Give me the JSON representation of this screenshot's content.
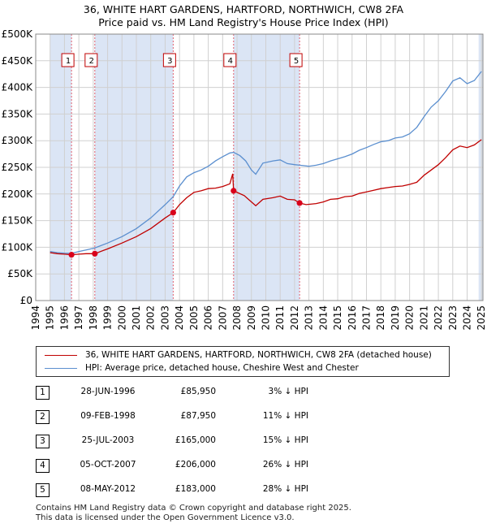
{
  "title_line1": "36, WHITE HART GARDENS, HARTFORD, NORTHWICH, CW8 2FA",
  "title_line2": "Price paid vs. HM Land Registry's House Price Index (HPI)",
  "colors": {
    "property": "#c00000",
    "hpi": "#5b8fcf",
    "band": "#dbe5f5",
    "marker": "#d9001b"
  },
  "chart_data": {
    "type": "line",
    "title": "36, WHITE HART GARDENS, HARTFORD, NORTHWICH, CW8 2FA",
    "subtitle": "Price paid vs. HM Land Registry's House Price Index (HPI)",
    "xlabel": "",
    "ylabel": "",
    "xlim": [
      1994,
      2025.1
    ],
    "ylim": [
      0,
      500000
    ],
    "grid": true,
    "x_ticks": [
      "1994",
      "1995",
      "1996",
      "1997",
      "1998",
      "1999",
      "2000",
      "2001",
      "2002",
      "2003",
      "2004",
      "2005",
      "2006",
      "2007",
      "2008",
      "2009",
      "2010",
      "2011",
      "2012",
      "2013",
      "2014",
      "2015",
      "2016",
      "2017",
      "2018",
      "2019",
      "2020",
      "2021",
      "2022",
      "2023",
      "2024",
      "2025"
    ],
    "y_ticks": [
      {
        "value": 0,
        "label": "£0"
      },
      {
        "value": 50000,
        "label": "£50K"
      },
      {
        "value": 100000,
        "label": "£100K"
      },
      {
        "value": 150000,
        "label": "£150K"
      },
      {
        "value": 200000,
        "label": "£200K"
      },
      {
        "value": 250000,
        "label": "£250K"
      },
      {
        "value": 300000,
        "label": "£300K"
      },
      {
        "value": 350000,
        "label": "£350K"
      },
      {
        "value": 400000,
        "label": "£400K"
      },
      {
        "value": 450000,
        "label": "£450K"
      },
      {
        "value": 500000,
        "label": "£500K"
      }
    ],
    "shaded_bands": [
      [
        1995.0,
        1996.49
      ],
      [
        1998.11,
        2003.56
      ],
      [
        2007.76,
        2012.35
      ],
      [
        2024.8,
        2025.1
      ]
    ],
    "series": [
      {
        "name": "36, WHITE HART GARDENS, HARTFORD, NORTHWICH, CW8 2FA (detached house)",
        "x": [
          1995.0,
          1995.5,
          1996.0,
          1996.49,
          1997.0,
          1997.5,
          1998.11,
          1999.0,
          2000.0,
          2001.0,
          2002.0,
          2003.0,
          2003.56,
          2004.0,
          2004.5,
          2005.0,
          2005.5,
          2006.0,
          2006.5,
          2007.0,
          2007.5,
          2007.7,
          2007.76,
          2008.5,
          2009.0,
          2009.3,
          2009.8,
          2010.5,
          2011.0,
          2011.5,
          2012.0,
          2012.35,
          2012.8,
          2013.5,
          2014.0,
          2014.5,
          2015.0,
          2015.5,
          2016.0,
          2016.5,
          2017.0,
          2017.5,
          2018.0,
          2018.5,
          2019.0,
          2019.5,
          2020.0,
          2020.5,
          2021.0,
          2021.5,
          2022.0,
          2022.5,
          2023.0,
          2023.5,
          2024.0,
          2024.5,
          2025.0
        ],
        "y": [
          90000,
          88000,
          87000,
          85950,
          87000,
          88000,
          87950,
          97000,
          108000,
          120000,
          135000,
          155000,
          165000,
          180000,
          193000,
          203000,
          206000,
          210000,
          211000,
          214000,
          219000,
          238000,
          206000,
          197000,
          185000,
          178000,
          190000,
          193000,
          196000,
          190000,
          189000,
          183000,
          180000,
          182000,
          185000,
          190000,
          191000,
          195000,
          196000,
          201000,
          204000,
          207000,
          210000,
          212000,
          214000,
          215000,
          218000,
          222000,
          235000,
          245000,
          255000,
          268000,
          283000,
          290000,
          287000,
          292000,
          302000
        ]
      },
      {
        "name": "HPI: Average price, detached house, Cheshire West and Chester",
        "x": [
          1995.0,
          1995.5,
          1996.0,
          1996.49,
          1997.0,
          1997.5,
          1998.11,
          1999.0,
          2000.0,
          2001.0,
          2002.0,
          2003.0,
          2003.56,
          2004.0,
          2004.5,
          2005.0,
          2005.5,
          2006.0,
          2006.5,
          2007.0,
          2007.5,
          2007.76,
          2008.2,
          2008.6,
          2009.0,
          2009.3,
          2009.8,
          2010.5,
          2011.0,
          2011.5,
          2012.0,
          2012.35,
          2013.0,
          2013.5,
          2014.0,
          2014.5,
          2015.0,
          2015.5,
          2016.0,
          2016.5,
          2017.0,
          2017.5,
          2018.0,
          2018.5,
          2019.0,
          2019.5,
          2020.0,
          2020.5,
          2021.0,
          2021.5,
          2022.0,
          2022.5,
          2023.0,
          2023.5,
          2024.0,
          2024.5,
          2025.0
        ],
        "y": [
          92000,
          90000,
          89000,
          88600,
          92000,
          95000,
          98800,
          108000,
          120000,
          135000,
          155000,
          180000,
          195000,
          215000,
          232000,
          240000,
          245000,
          252000,
          262000,
          270000,
          277000,
          278000,
          272000,
          262000,
          245000,
          237000,
          258000,
          262000,
          264000,
          257000,
          255000,
          254000,
          252000,
          254000,
          257000,
          262000,
          266000,
          270000,
          275000,
          282000,
          287000,
          293000,
          298000,
          300000,
          305000,
          307000,
          313000,
          325000,
          345000,
          363000,
          375000,
          392000,
          412000,
          418000,
          407000,
          413000,
          430000
        ]
      }
    ],
    "sales": [
      {
        "label": "1",
        "x": 1996.49,
        "price": 85950
      },
      {
        "label": "2",
        "x": 1998.11,
        "price": 87950
      },
      {
        "label": "3",
        "x": 2003.56,
        "price": 165000
      },
      {
        "label": "4",
        "x": 2007.76,
        "price": 206000
      },
      {
        "label": "5",
        "x": 2012.35,
        "price": 183000
      }
    ]
  },
  "legend": {
    "property_label": "36, WHITE HART GARDENS, HARTFORD, NORTHWICH, CW8 2FA (detached house)",
    "hpi_label": "HPI: Average price, detached house, Cheshire West and Chester"
  },
  "transactions": [
    {
      "num": "1",
      "date": "28-JUN-1996",
      "price": "£85,950",
      "hpi": "3% ↓ HPI"
    },
    {
      "num": "2",
      "date": "09-FEB-1998",
      "price": "£87,950",
      "hpi": "11% ↓ HPI"
    },
    {
      "num": "3",
      "date": "25-JUL-2003",
      "price": "£165,000",
      "hpi": "15% ↓ HPI"
    },
    {
      "num": "4",
      "date": "05-OCT-2007",
      "price": "£206,000",
      "hpi": "26% ↓ HPI"
    },
    {
      "num": "5",
      "date": "08-MAY-2012",
      "price": "£183,000",
      "hpi": "28% ↓ HPI"
    }
  ],
  "footer_line1": "Contains HM Land Registry data © Crown copyright and database right 2025.",
  "footer_line2": "This data is licensed under the Open Government Licence v3.0."
}
